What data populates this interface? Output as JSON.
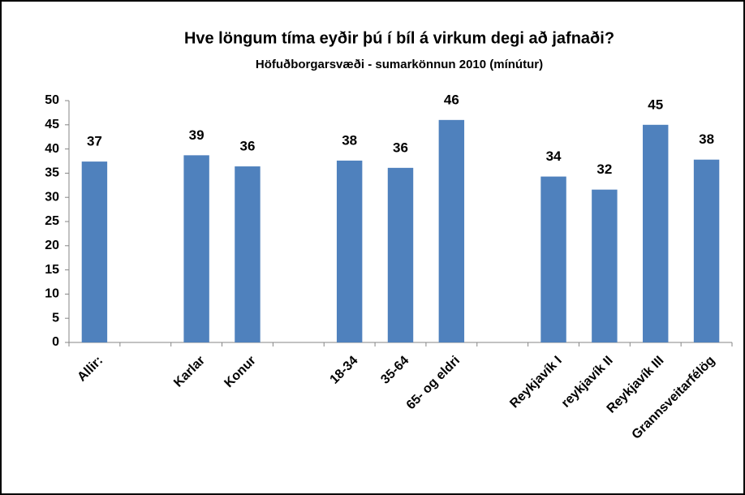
{
  "chart_data": {
    "type": "bar",
    "title": "Hve löngum tíma eyðir þú í bíl á virkum degi að jafnaði?",
    "subtitle": "Höfuðborgarsvæði - sumarkönnun 2010 (mínútur)",
    "categories": [
      "Allir:",
      null,
      "Karlar",
      "Konur",
      null,
      "18-34",
      "35-64",
      "65- og eldri",
      null,
      "Reykjavík I",
      "reykjavík II",
      "Reykjavík III",
      "Grannsveitarfélög"
    ],
    "values": [
      37.4,
      null,
      38.7,
      36.4,
      null,
      37.6,
      36.1,
      46,
      null,
      34.3,
      31.6,
      45,
      37.8
    ],
    "value_labels": [
      "37",
      null,
      "39",
      "36",
      null,
      "38",
      "36",
      "46",
      null,
      "34",
      "32",
      "45",
      "38"
    ],
    "color": "#4f81bd",
    "ylim": [
      0,
      50
    ],
    "yticks": [
      0,
      5,
      10,
      15,
      20,
      25,
      30,
      35,
      40,
      45,
      50
    ],
    "grid": false
  }
}
